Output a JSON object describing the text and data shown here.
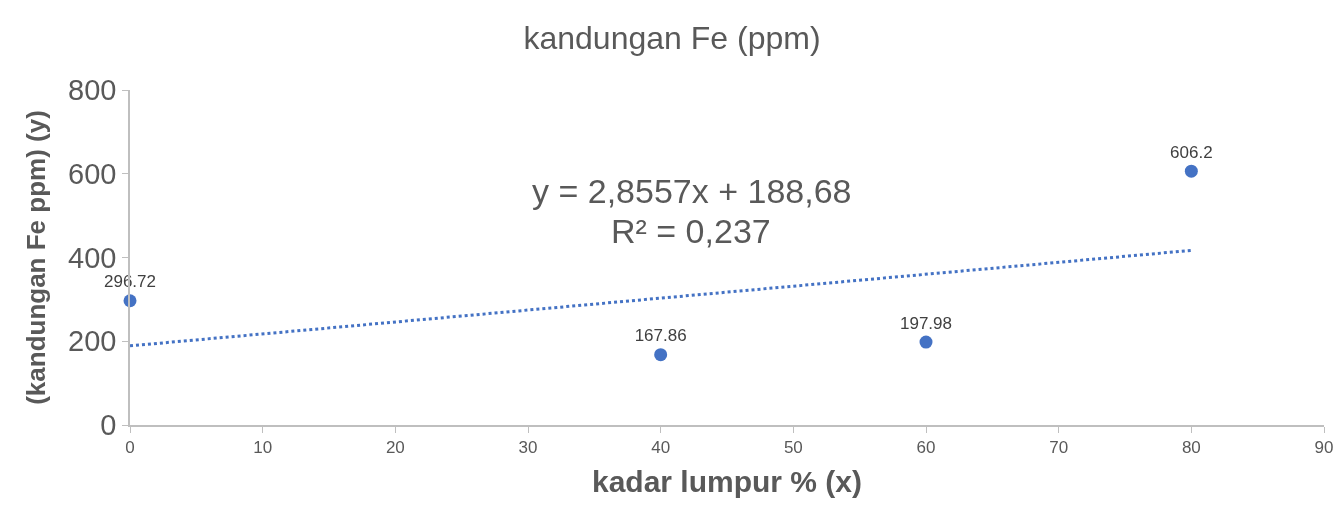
{
  "chart_data": {
    "type": "scatter",
    "title": "kandungan Fe (ppm)",
    "xlabel": "kadar lumpur % (x)",
    "ylabel": "(kandungan Fe ppm) (y)",
    "x": [
      0,
      40,
      60,
      80
    ],
    "series": [
      {
        "color": "#4472c4",
        "values": [
          296.72,
          167.86,
          197.98,
          606.2
        ],
        "value_labels": [
          "296.72",
          "167.86",
          "197.98",
          "606.2"
        ],
        "marker": "circle"
      },
      {
        "type": "line",
        "color": "#4472c4",
        "x": [
          0,
          80
        ],
        "values": [
          189,
          417
        ],
        "line_style": "dotted",
        "marker": "none"
      }
    ],
    "annotations": [
      "y = 2,8557x + 188,68",
      "R² = 0,237"
    ],
    "xlim": [
      0,
      90
    ],
    "xticks": [
      0,
      10,
      20,
      30,
      40,
      50,
      60,
      70,
      80,
      90
    ],
    "ylim": [
      0,
      800
    ],
    "yticks": [
      0,
      200,
      400,
      600,
      800
    ]
  }
}
